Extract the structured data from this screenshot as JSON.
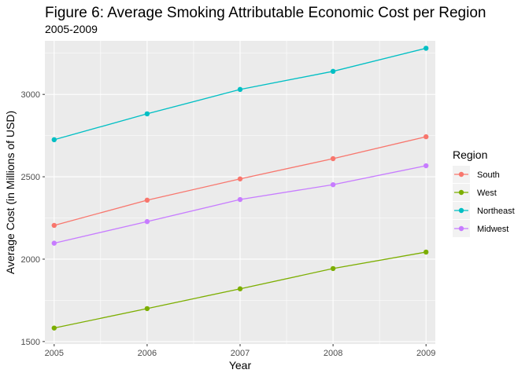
{
  "chart_data": {
    "type": "line",
    "title": "Figure 6: Average Smoking Attributable Economic Cost per Region",
    "subtitle": "2005-2009",
    "xlabel": "Year",
    "ylabel": "Average Cost (in Millions of USD)",
    "x": [
      2005,
      2006,
      2007,
      2008,
      2009
    ],
    "xlim": [
      2004.9,
      2009.1
    ],
    "ylim": [
      1485,
      3325
    ],
    "yticks": [
      1500,
      2000,
      2500,
      3000
    ],
    "xtick_labels": [
      "2005",
      "2006",
      "2007",
      "2008",
      "2009"
    ],
    "ytick_labels": [
      "1500",
      "2000",
      "2500",
      "3000"
    ],
    "grid": true,
    "legend": {
      "title": "Region",
      "position": "right"
    },
    "series": [
      {
        "name": "South",
        "color": "#F8766D",
        "values": [
          2205,
          2358,
          2487,
          2610,
          2743
        ]
      },
      {
        "name": "West",
        "color": "#7CAE00",
        "values": [
          1582,
          1700,
          1820,
          1943,
          2043
        ]
      },
      {
        "name": "Northeast",
        "color": "#00BFC4",
        "values": [
          2725,
          2882,
          3030,
          3140,
          3280
        ]
      },
      {
        "name": "Midwest",
        "color": "#C77CFF",
        "values": [
          2097,
          2228,
          2362,
          2452,
          2567
        ]
      }
    ]
  }
}
